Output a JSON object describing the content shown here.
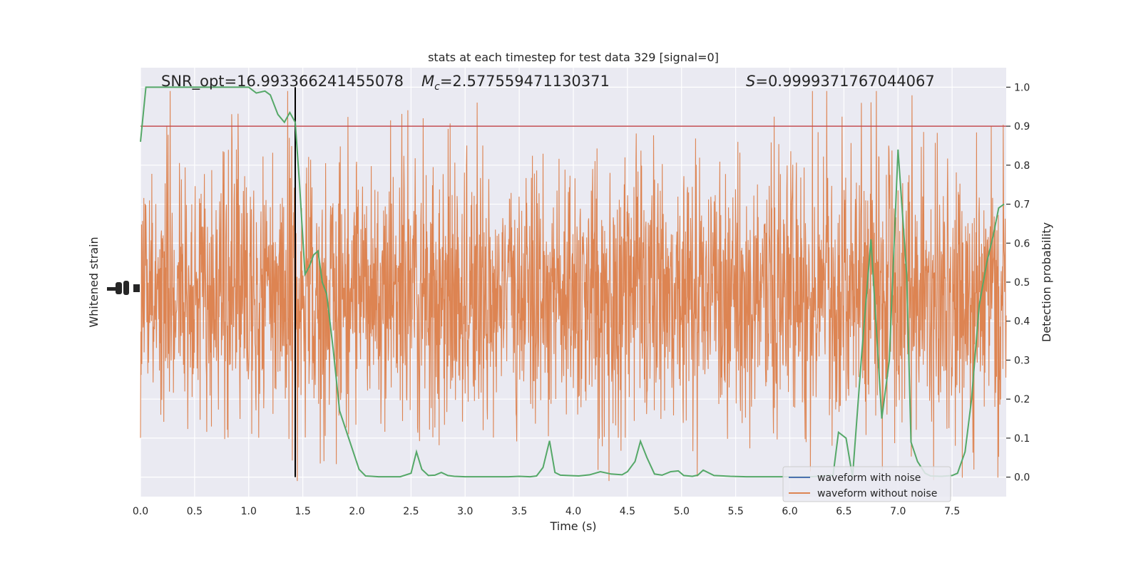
{
  "chart_data": {
    "type": "line",
    "title": "stats at each timestep for test data 329 [signal=0]",
    "xlabel": "Time (s)",
    "ylabel_left": "Whitened strain",
    "ylabel_right": "Detection probability",
    "xlim": [
      0.0,
      8.0
    ],
    "ylim_right": [
      -0.05,
      1.05
    ],
    "x_ticks": [
      "0.0",
      "0.5",
      "1.0",
      "1.5",
      "2.0",
      "2.5",
      "3.0",
      "3.5",
      "4.0",
      "4.5",
      "5.0",
      "5.5",
      "6.0",
      "6.5",
      "7.0",
      "7.5"
    ],
    "y_ticks_right": [
      "0.0",
      "0.1",
      "0.2",
      "0.3",
      "0.4",
      "0.5",
      "0.6",
      "0.7",
      "0.8",
      "0.9",
      "1.0"
    ],
    "grid": true,
    "annotations": {
      "snr": "SNR_opt=16.993366241455078",
      "mc_symbol": "M",
      "mc_sub": "c",
      "mc_value": "=2.577559471130371",
      "s_symbol": "S",
      "s_value": "=0.9999371767044067"
    },
    "threshold": 0.9,
    "marker_time": 1.43,
    "legend": {
      "position": "lower-right",
      "entries": [
        {
          "label": "waveform with noise",
          "color": "#4c72b0"
        },
        {
          "label": "waveform without noise",
          "color": "#dd8452"
        }
      ]
    },
    "series": [
      {
        "name": "detection probability",
        "color": "#55a868",
        "x": [
          0.0,
          0.05,
          0.1,
          0.15,
          0.2,
          0.25,
          0.3,
          0.35,
          0.4,
          0.5,
          0.6,
          0.7,
          0.8,
          0.9,
          1.0,
          1.07,
          1.15,
          1.2,
          1.27,
          1.33,
          1.38,
          1.43,
          1.47,
          1.52,
          1.56,
          1.6,
          1.64,
          1.68,
          1.72,
          1.78,
          1.84,
          1.9,
          1.96,
          2.02,
          2.08,
          2.14,
          2.2,
          2.3,
          2.4,
          2.5,
          2.55,
          2.6,
          2.66,
          2.72,
          2.78,
          2.84,
          2.9,
          3.0,
          3.2,
          3.4,
          3.5,
          3.6,
          3.66,
          3.72,
          3.78,
          3.83,
          3.88,
          3.95,
          4.05,
          4.15,
          4.25,
          4.35,
          4.45,
          4.5,
          4.57,
          4.62,
          4.68,
          4.75,
          4.82,
          4.9,
          4.97,
          5.02,
          5.1,
          5.15,
          5.2,
          5.3,
          5.45,
          5.6,
          5.8,
          6.0,
          6.2,
          6.4,
          6.45,
          6.52,
          6.58,
          6.66,
          6.75,
          6.8,
          6.85,
          6.92,
          7.0,
          7.08,
          7.12,
          7.18,
          7.25,
          7.3,
          7.4,
          7.5,
          7.55,
          7.62,
          7.68,
          7.75,
          7.82,
          7.88,
          7.93,
          7.98
        ],
        "y": [
          0.86,
          1.0,
          1.0,
          1.0,
          1.0,
          1.0,
          1.0,
          1.0,
          1.0,
          1.0,
          1.0,
          1.0,
          1.0,
          1.0,
          1.0,
          0.985,
          0.99,
          0.98,
          0.93,
          0.91,
          0.935,
          0.91,
          0.75,
          0.52,
          0.54,
          0.57,
          0.58,
          0.5,
          0.47,
          0.33,
          0.17,
          0.12,
          0.07,
          0.02,
          0.003,
          0.002,
          0.001,
          0.001,
          0.001,
          0.01,
          0.065,
          0.02,
          0.004,
          0.005,
          0.012,
          0.004,
          0.002,
          0.001,
          0.001,
          0.001,
          0.002,
          0.001,
          0.003,
          0.025,
          0.093,
          0.012,
          0.005,
          0.004,
          0.003,
          0.006,
          0.014,
          0.008,
          0.006,
          0.014,
          0.04,
          0.092,
          0.05,
          0.008,
          0.005,
          0.014,
          0.016,
          0.004,
          0.002,
          0.005,
          0.018,
          0.004,
          0.002,
          0.001,
          0.001,
          0.001,
          0.001,
          0.005,
          0.115,
          0.1,
          0.0,
          0.3,
          0.61,
          0.38,
          0.15,
          0.3,
          0.84,
          0.52,
          0.09,
          0.04,
          0.01,
          0.003,
          0.002,
          0.004,
          0.01,
          0.065,
          0.2,
          0.44,
          0.55,
          0.62,
          0.69,
          0.7
        ]
      }
    ]
  }
}
